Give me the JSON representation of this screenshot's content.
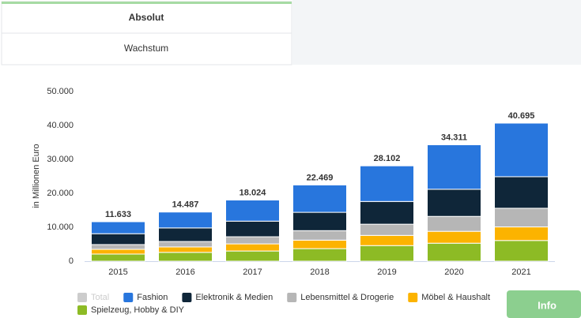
{
  "ui": {
    "tabs": [
      "Absolut",
      "Wachstum"
    ],
    "info": "Info"
  },
  "chart_data": {
    "type": "bar",
    "stacked": true,
    "ylabel": "in Millionen Euro",
    "categories": [
      "2015",
      "2016",
      "2017",
      "2018",
      "2019",
      "2020",
      "2021"
    ],
    "ylim": [
      0,
      50000
    ],
    "yticks": [
      0,
      {
        "value": 10000,
        "label": "10.000"
      },
      {
        "value": 20000,
        "label": "20.000"
      },
      {
        "value": 30000,
        "label": "30.000"
      },
      {
        "value": 40000,
        "label": "40.000"
      },
      {
        "value": 50000,
        "label": "50.000"
      }
    ],
    "grid": false,
    "series": [
      {
        "name": "Total",
        "color": "#cccccc",
        "hidden": true,
        "values": [
          11633,
          14487,
          18024,
          22469,
          28102,
          34311,
          40695
        ],
        "value_labels": [
          "11.633",
          "14.487",
          "18.024",
          "22.469",
          "28.102",
          "34.311",
          "40.695"
        ]
      },
      {
        "name": "Fashion",
        "color": "#2876dd",
        "values": [
          3533,
          4687,
          6224,
          8069,
          10502,
          13111,
          15795
        ]
      },
      {
        "name": "Elektronik & Medien",
        "color": "#0f2639",
        "values": [
          3200,
          4000,
          4600,
          5400,
          6700,
          8000,
          9300
        ]
      },
      {
        "name": "Lebensmittel & Drogerie",
        "color": "#b6b6b6",
        "values": [
          1400,
          1600,
          2100,
          2800,
          3300,
          4400,
          5500
        ]
      },
      {
        "name": "Möbel & Haushalt",
        "color": "#fcb300",
        "values": [
          1400,
          1600,
          2100,
          2500,
          3000,
          3500,
          4000
        ]
      },
      {
        "name": "Spielzeug, Hobby & DIY",
        "color": "#8dbb25",
        "values": [
          2100,
          2600,
          3000,
          3700,
          4600,
          5300,
          6100
        ]
      }
    ]
  }
}
